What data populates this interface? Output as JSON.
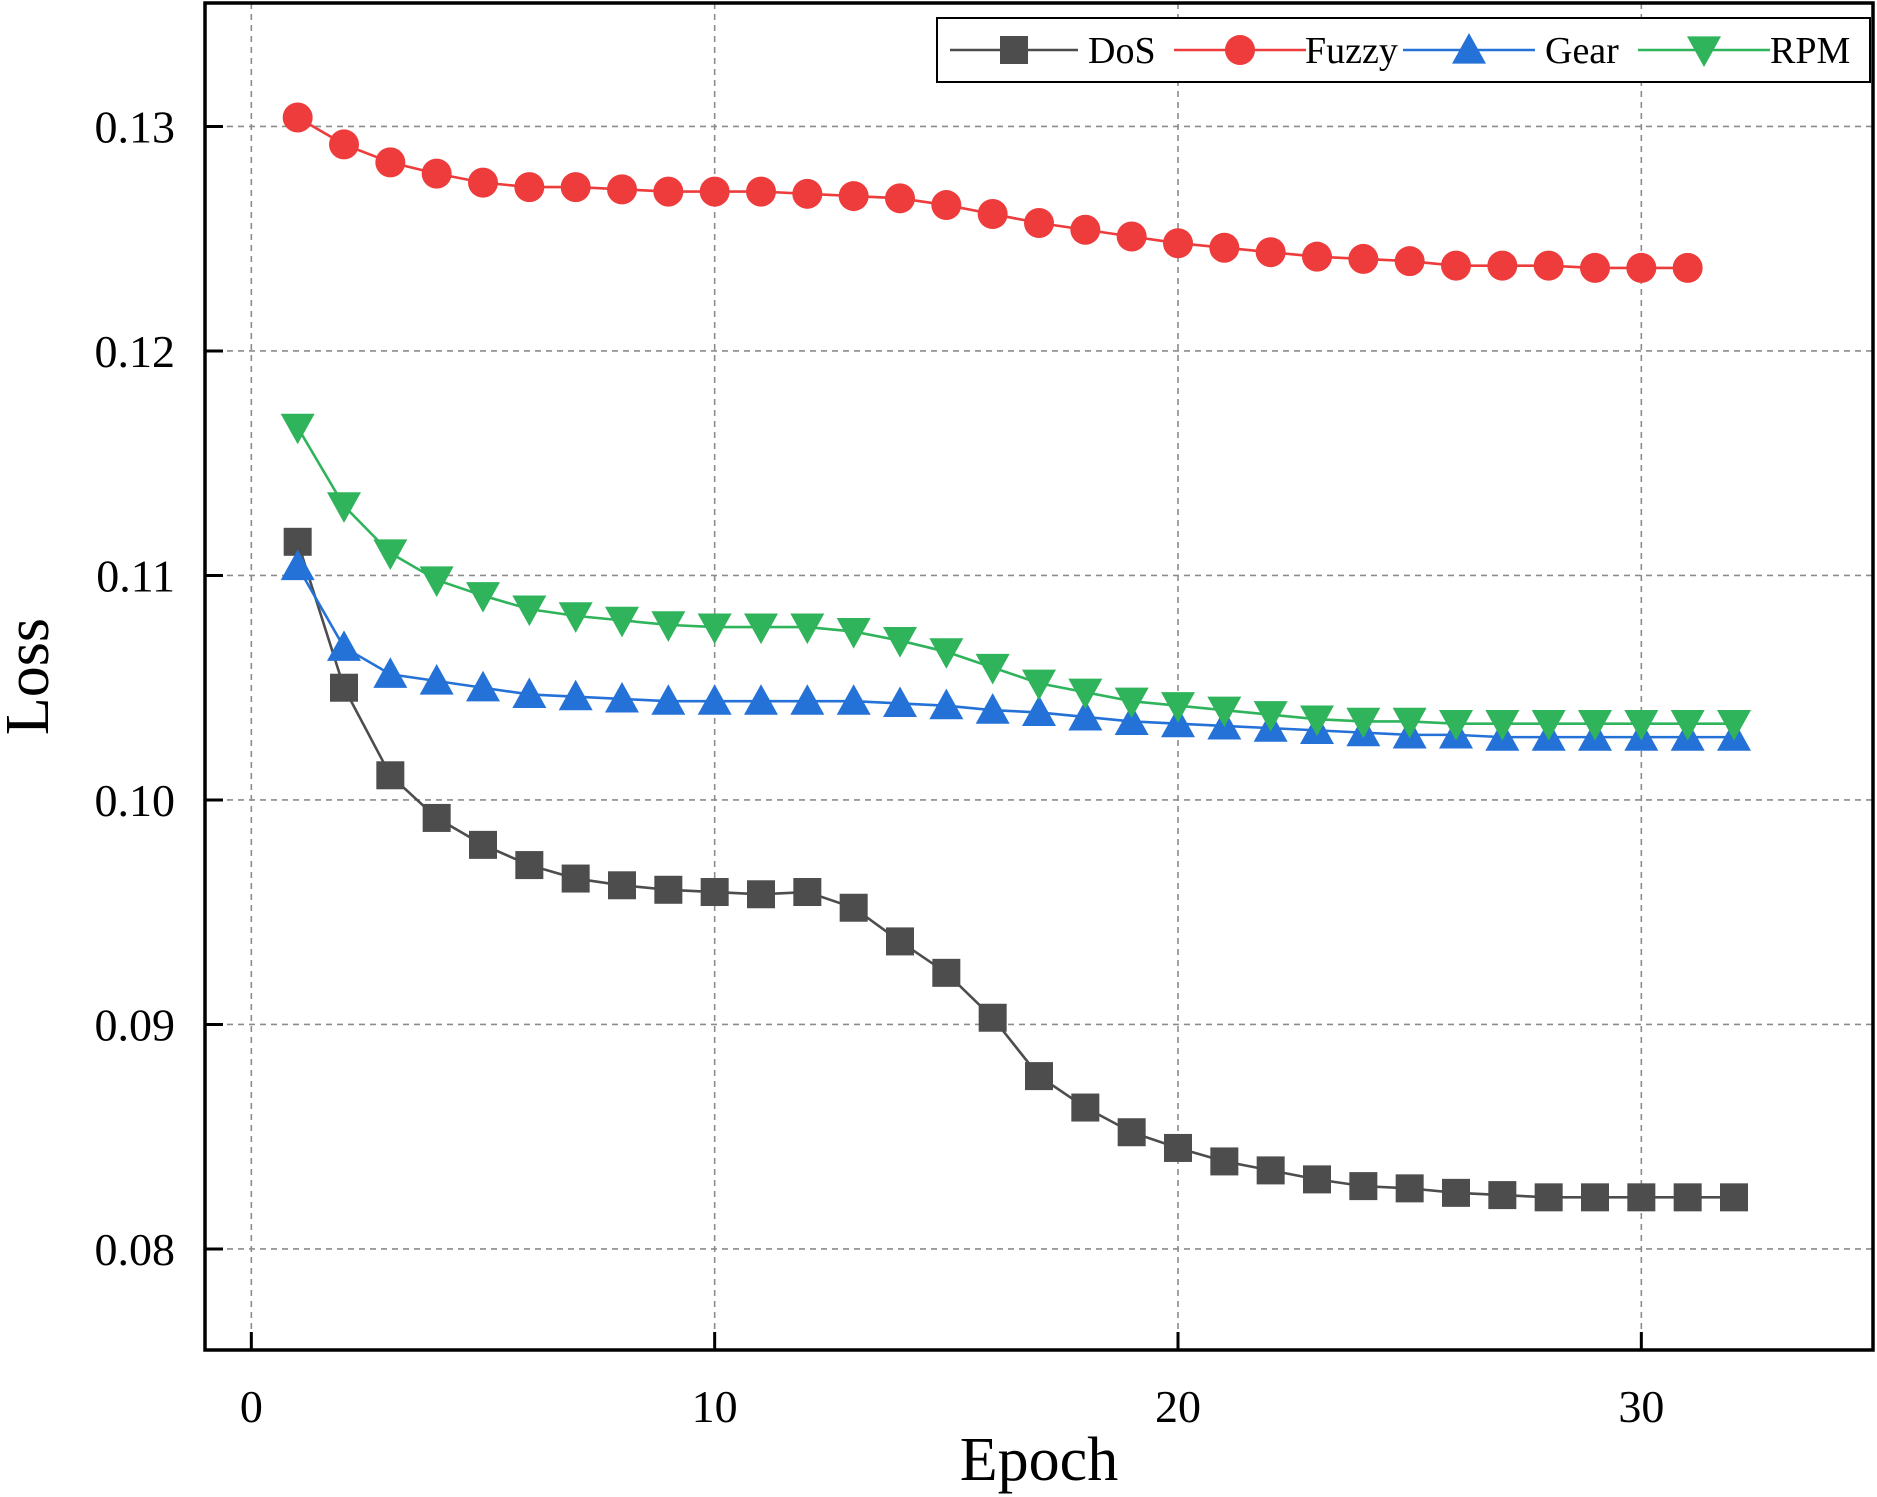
{
  "chart_data": {
    "type": "line",
    "title": "",
    "xlabel": "Epoch",
    "ylabel": "Loss",
    "xlim": [
      -1,
      35
    ],
    "ylim": [
      0.0755,
      0.1355
    ],
    "xticks": [
      0,
      10,
      20,
      30
    ],
    "yticks": [
      0.08,
      0.09,
      0.1,
      0.11,
      0.12,
      0.13
    ],
    "xtick_labels": [
      "0",
      "10",
      "20",
      "30"
    ],
    "ytick_labels": [
      "0.08",
      "0.09",
      "0.10",
      "0.11",
      "0.12",
      "0.13"
    ],
    "grid": true,
    "legend_position": "top-right",
    "series": [
      {
        "name": "DoS",
        "color": "#4d4d4d",
        "marker": "square",
        "x": [
          1,
          2,
          3,
          4,
          5,
          6,
          7,
          8,
          9,
          10,
          11,
          12,
          13,
          14,
          15,
          16,
          17,
          18,
          19,
          20,
          21,
          22,
          23,
          24,
          25,
          26,
          27,
          28,
          29,
          30,
          31,
          32
        ],
        "values": [
          0.1115,
          0.105,
          0.1011,
          0.0992,
          0.098,
          0.0971,
          0.0965,
          0.0962,
          0.096,
          0.0959,
          0.0958,
          0.0959,
          0.0952,
          0.0937,
          0.0923,
          0.0903,
          0.0877,
          0.0863,
          0.0852,
          0.0845,
          0.0839,
          0.0835,
          0.0831,
          0.0828,
          0.0827,
          0.0825,
          0.0824,
          0.0823,
          0.0823,
          0.0823,
          0.0823,
          0.0823
        ]
      },
      {
        "name": "Fuzzy",
        "color": "#ee3b3b",
        "marker": "circle",
        "x": [
          1,
          2,
          3,
          4,
          5,
          6,
          7,
          8,
          9,
          10,
          11,
          12,
          13,
          14,
          15,
          16,
          17,
          18,
          19,
          20,
          21,
          22,
          23,
          24,
          25,
          26,
          27,
          28,
          29,
          30,
          31
        ],
        "values": [
          0.1304,
          0.1292,
          0.1284,
          0.1279,
          0.1275,
          0.1273,
          0.1273,
          0.1272,
          0.1271,
          0.1271,
          0.1271,
          0.127,
          0.1269,
          0.1268,
          0.1265,
          0.1261,
          0.1257,
          0.1254,
          0.1251,
          0.1248,
          0.1246,
          0.1244,
          0.1242,
          0.1241,
          0.124,
          0.1238,
          0.1238,
          0.1238,
          0.1237,
          0.1237,
          0.1237
        ]
      },
      {
        "name": "Gear",
        "color": "#2472d8",
        "marker": "triangle-up",
        "x": [
          1,
          2,
          3,
          4,
          5,
          6,
          7,
          8,
          9,
          10,
          11,
          12,
          13,
          14,
          15,
          16,
          17,
          18,
          19,
          20,
          21,
          22,
          23,
          24,
          25,
          26,
          27,
          28,
          29,
          30,
          31,
          32
        ],
        "values": [
          0.1104,
          0.1068,
          0.1056,
          0.1053,
          0.105,
          0.1047,
          0.1046,
          0.1045,
          0.1044,
          0.1044,
          0.1044,
          0.1044,
          0.1044,
          0.1043,
          0.1042,
          0.104,
          0.1039,
          0.1037,
          0.1035,
          0.1034,
          0.1033,
          0.1032,
          0.1031,
          0.103,
          0.1029,
          0.1029,
          0.1028,
          0.1028,
          0.1028,
          0.1028,
          0.1028,
          0.1028
        ]
      },
      {
        "name": "RPM",
        "color": "#2fb35b",
        "marker": "triangle-down",
        "x": [
          1,
          2,
          3,
          4,
          5,
          6,
          7,
          8,
          9,
          10,
          11,
          12,
          13,
          14,
          15,
          16,
          17,
          18,
          19,
          20,
          21,
          22,
          23,
          24,
          25,
          26,
          27,
          28,
          29,
          30,
          31,
          32
        ],
        "values": [
          0.1166,
          0.1131,
          0.111,
          0.1098,
          0.1091,
          0.1085,
          0.1082,
          0.108,
          0.1078,
          0.1077,
          0.1077,
          0.1077,
          0.1075,
          0.1071,
          0.1066,
          0.1059,
          0.1052,
          0.1048,
          0.1044,
          0.1042,
          0.104,
          0.1038,
          0.1036,
          0.1035,
          0.1035,
          0.1034,
          0.1034,
          0.1034,
          0.1034,
          0.1034,
          0.1034,
          0.1034
        ]
      }
    ]
  }
}
